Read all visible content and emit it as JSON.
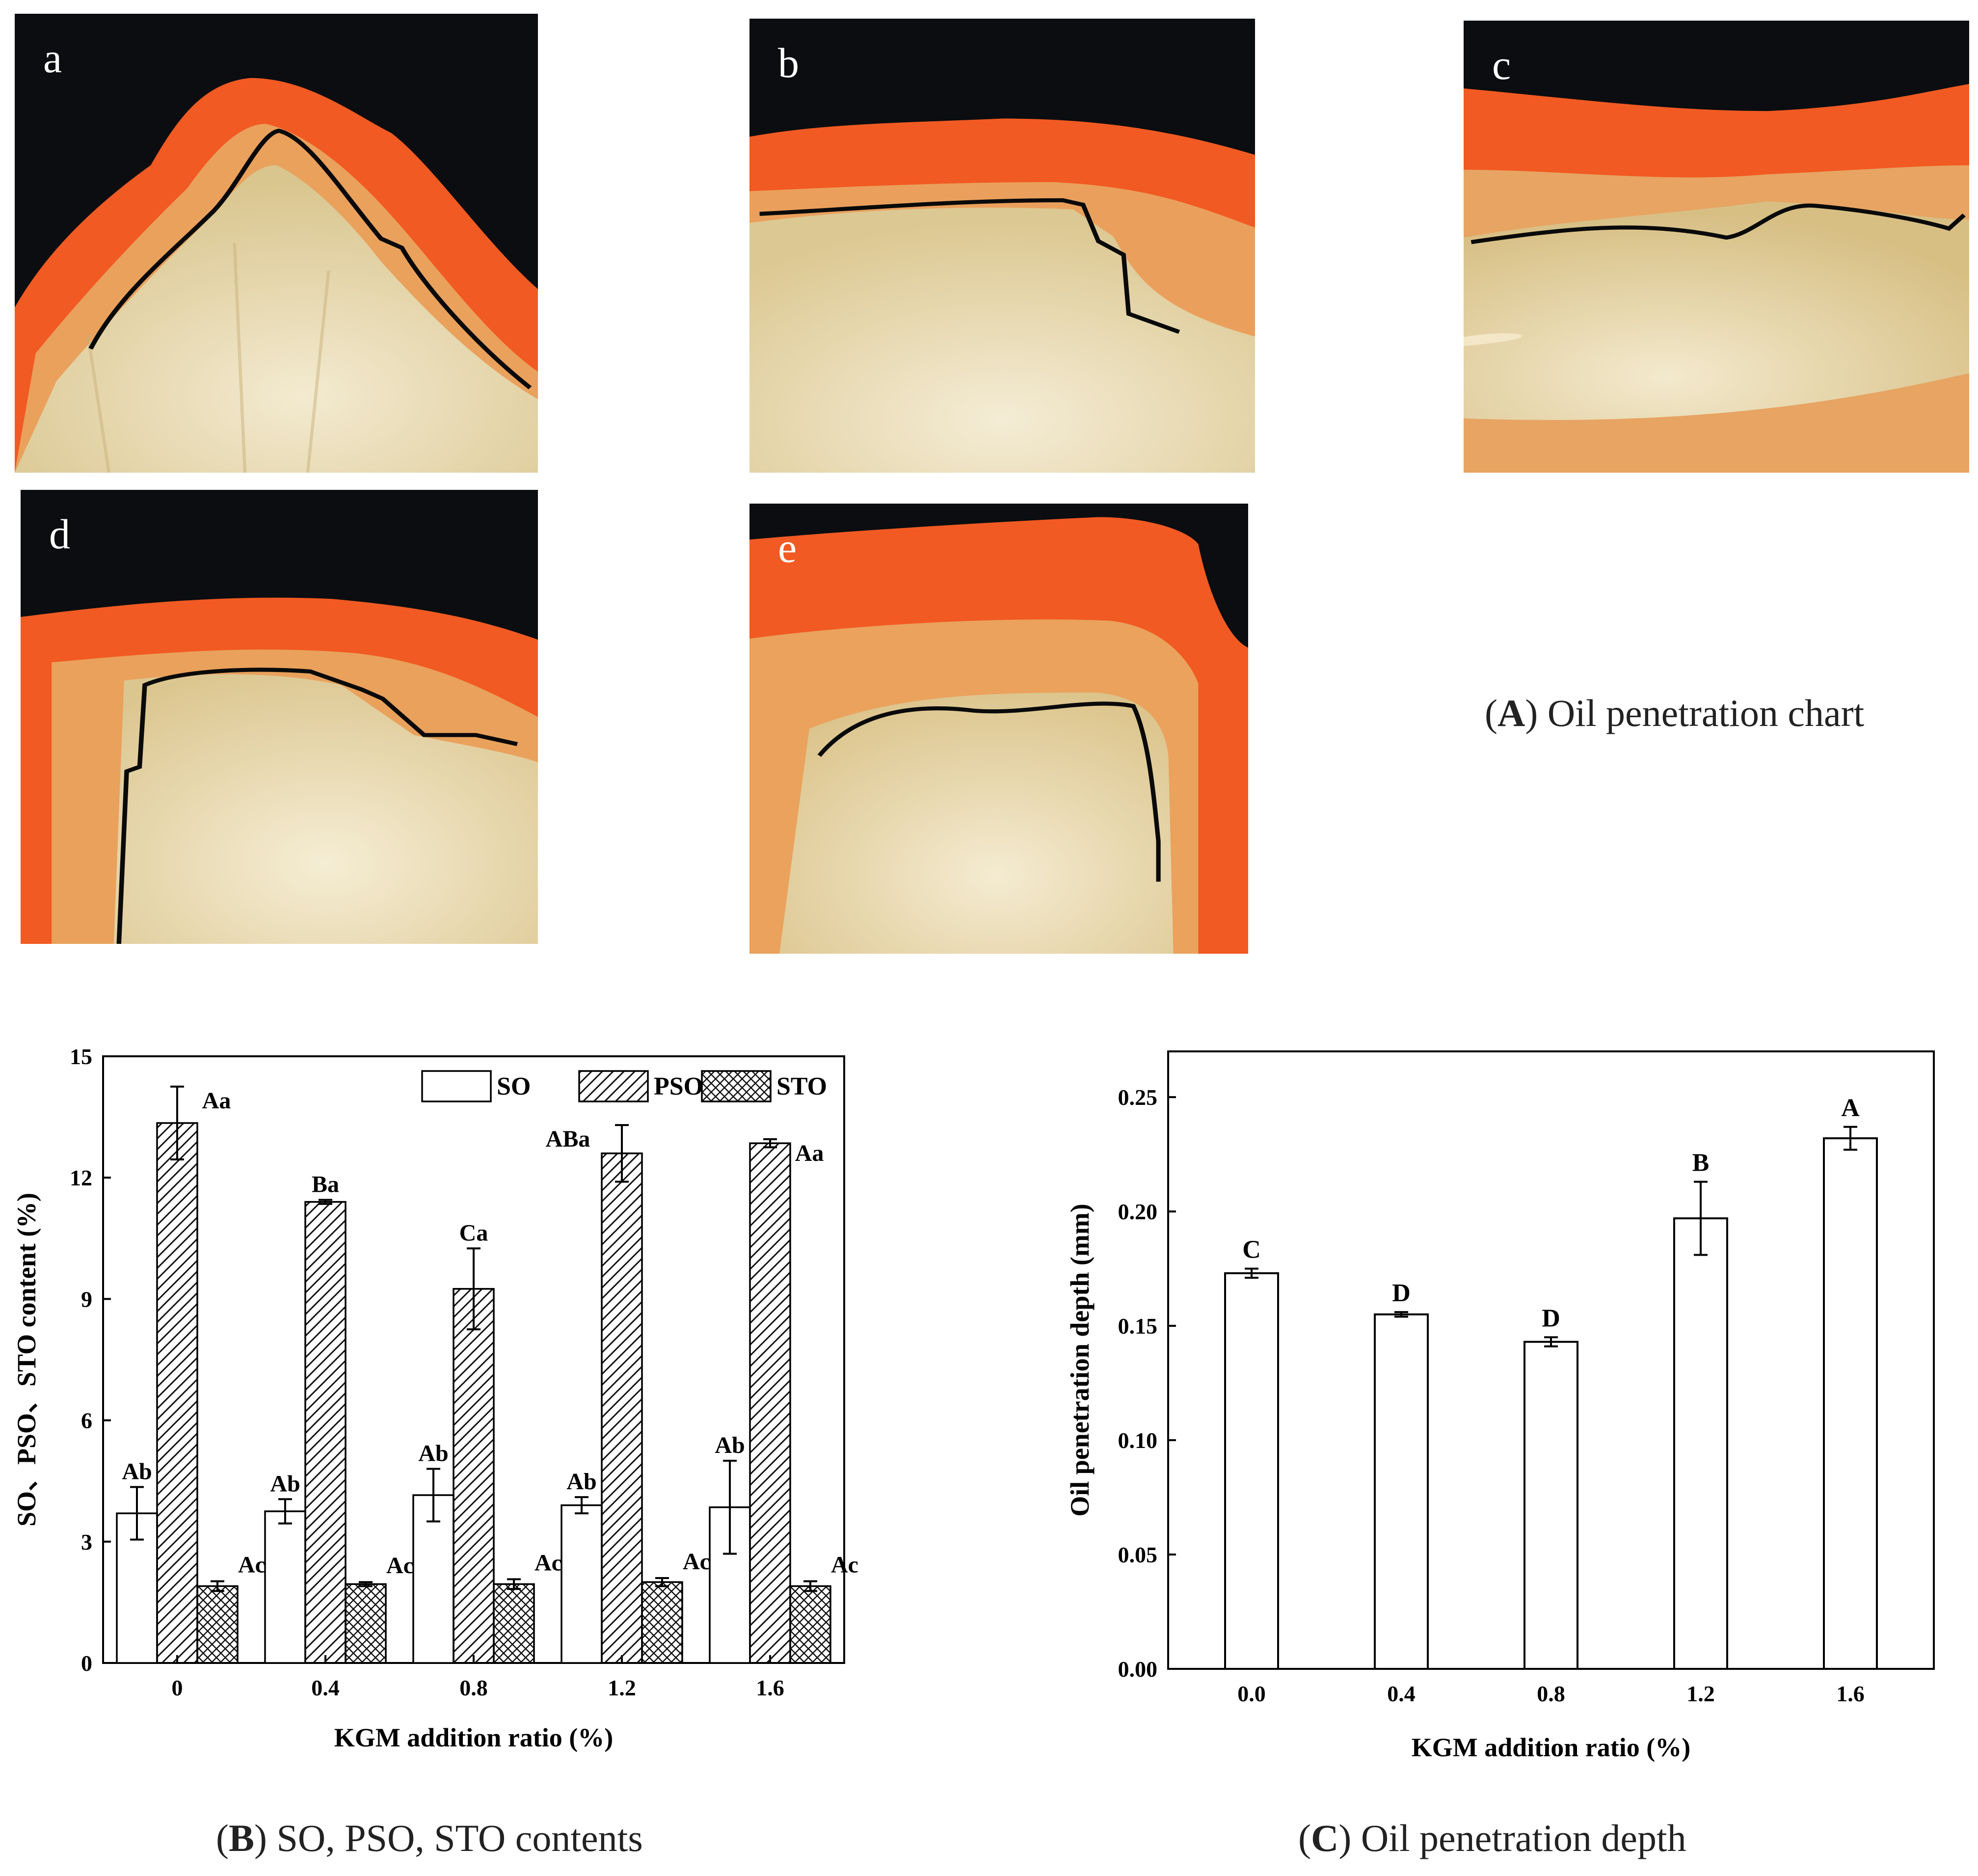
{
  "photos": [
    {
      "id": "a",
      "label": "a"
    },
    {
      "id": "b",
      "label": "b"
    },
    {
      "id": "c",
      "label": "c"
    },
    {
      "id": "d",
      "label": "d"
    },
    {
      "id": "e",
      "label": "e"
    }
  ],
  "captions": {
    "A": {
      "letter": "A",
      "text": " Oil penetration chart"
    },
    "B": {
      "letter": "B",
      "text": " SO, PSO, STO contents"
    },
    "C": {
      "letter": "C",
      "text": " Oil penetration depth"
    }
  },
  "chart_data": [
    {
      "type": "bar",
      "xlabel": "KGM addition ratio (%)",
      "ylabel": "SO、PSO、STO content (%)",
      "categories": [
        "0",
        "0.4",
        "0.8",
        "1.2",
        "1.6"
      ],
      "ylim": [
        0,
        15
      ],
      "yticks": [
        "0",
        "3",
        "6",
        "9",
        "12",
        "15"
      ],
      "legend_position": "top-right",
      "series": [
        {
          "name": "SO",
          "pattern": "plain",
          "values": [
            3.7,
            3.75,
            4.15,
            3.9,
            3.85
          ],
          "errors": [
            0.65,
            0.3,
            0.65,
            0.2,
            1.15
          ],
          "labels": [
            "Ab",
            "Ab",
            "Ab",
            "Ab",
            "Ab"
          ]
        },
        {
          "name": "PSO",
          "pattern": "diagonal-hatch",
          "values": [
            13.35,
            11.4,
            9.25,
            12.6,
            12.85
          ],
          "errors": [
            0.9,
            0.05,
            1.0,
            0.7,
            0.1
          ],
          "labels": [
            "Aa",
            "Ba",
            "Ca",
            "ABa",
            "Aa"
          ]
        },
        {
          "name": "STO",
          "pattern": "cross-hatch",
          "values": [
            1.9,
            1.95,
            1.95,
            2.0,
            1.9
          ],
          "errors": [
            0.12,
            0.05,
            0.12,
            0.1,
            0.12
          ],
          "labels": [
            "Ac",
            "Ac",
            "Ac",
            "Ac",
            "Ac"
          ]
        }
      ]
    },
    {
      "type": "bar",
      "xlabel": "KGM addition ratio (%)",
      "ylabel": "Oil penetration depth (mm)",
      "categories": [
        "0.0",
        "0.4",
        "0.8",
        "1.2",
        "1.6"
      ],
      "ylim": [
        0,
        0.27
      ],
      "yticks": [
        "0.00",
        "0.05",
        "0.10",
        "0.15",
        "0.20",
        "0.25"
      ],
      "series": [
        {
          "values": [
            0.173,
            0.155,
            0.143,
            0.197,
            0.232
          ],
          "errors": [
            0.002,
            0.001,
            0.002,
            0.016,
            0.005
          ],
          "labels": [
            "C",
            "D",
            "D",
            "B",
            "A"
          ]
        }
      ]
    }
  ]
}
